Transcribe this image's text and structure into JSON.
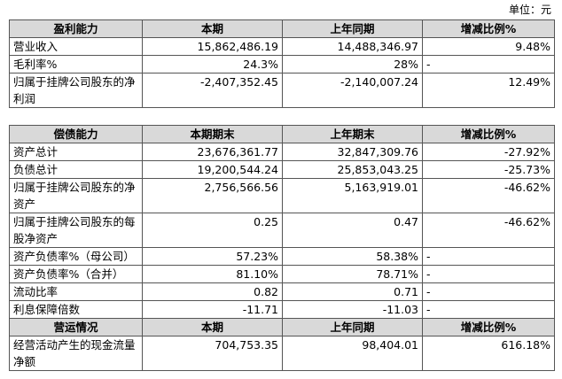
{
  "unit": "单位：元",
  "tables": [
    {
      "sections": [
        {
          "header": [
            "盈利能力",
            "本期",
            "上年同期",
            "增减比例%"
          ],
          "rows": [
            [
              "营业收入",
              "15,862,486.19",
              "14,488,346.97",
              "9.48%"
            ],
            [
              "毛利率%",
              "24.3%",
              "28%",
              "-"
            ],
            [
              "归属于挂牌公司股东的净利润",
              "-2,407,352.45",
              "-2,140,007.24",
              "12.49%"
            ]
          ]
        }
      ]
    },
    {
      "sections": [
        {
          "header": [
            "偿债能力",
            "本期期末",
            "上年期末",
            "增减比例%"
          ],
          "rows": [
            [
              "资产总计",
              "23,676,361.77",
              "32,847,309.76",
              "-27.92%"
            ],
            [
              "负债总计",
              "19,200,544.24",
              "25,853,043.25",
              "-25.73%"
            ],
            [
              "归属于挂牌公司股东的净资产",
              "2,756,566.56",
              "5,163,919.01",
              "-46.62%"
            ],
            [
              "归属于挂牌公司股东的每股净资产",
              "0.25",
              "0.47",
              "-46.62%"
            ],
            [
              "资产负债率%（母公司）",
              "57.23%",
              "58.38%",
              "-"
            ],
            [
              "资产负债率%（合并）",
              "81.10%",
              "78.71%",
              "-"
            ],
            [
              "流动比率",
              "0.82",
              "0.71",
              "-"
            ],
            [
              "利息保障倍数",
              "-11.71",
              "-11.03",
              "-"
            ]
          ]
        },
        {
          "header": [
            "营运情况",
            "本期",
            "上年同期",
            "增减比例%"
          ],
          "rows": [
            [
              "经营活动产生的现金流量净额",
              "704,753.35",
              "98,404.01",
              "616.18%"
            ]
          ]
        }
      ]
    }
  ]
}
